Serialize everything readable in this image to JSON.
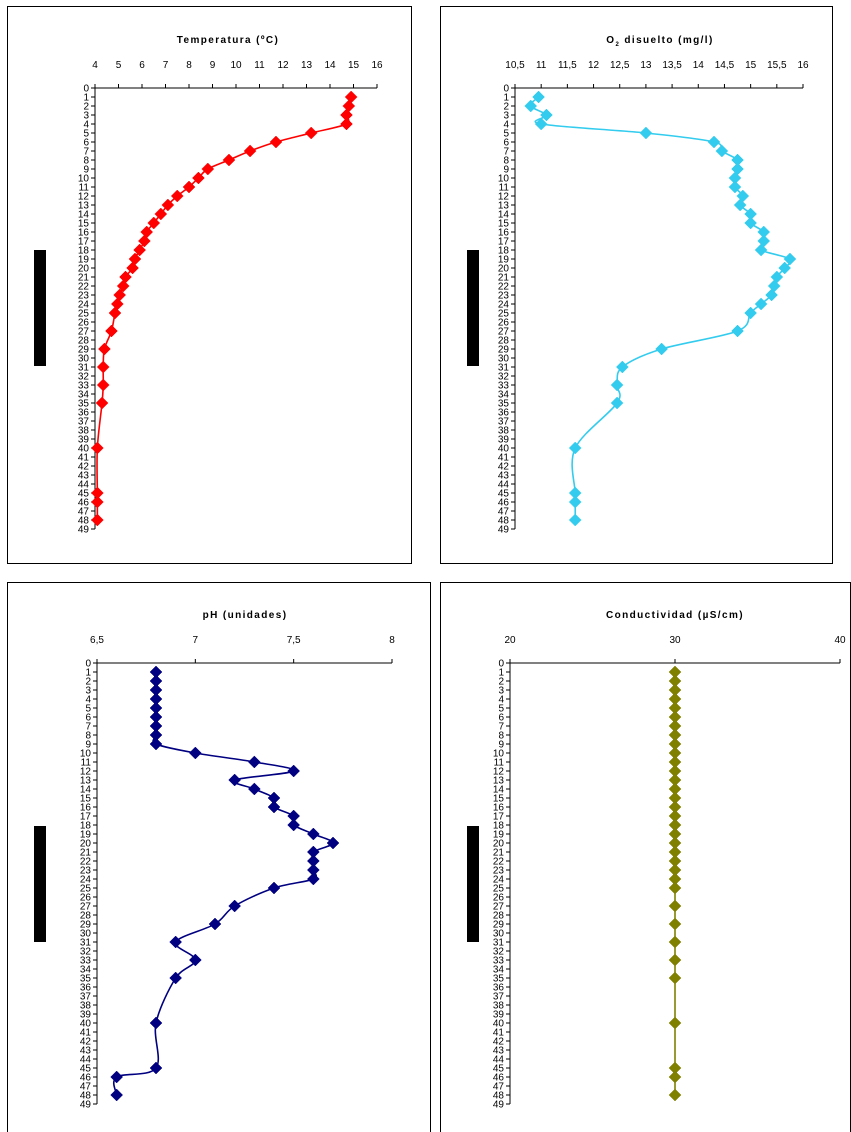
{
  "chart_data": [
    {
      "type": "line",
      "title": "Temperatura (ºC)",
      "x_ticks": [
        "4",
        "5",
        "6",
        "7",
        "8",
        "9",
        "10",
        "11",
        "12",
        "13",
        "14",
        "15",
        "16"
      ],
      "xlim": [
        4,
        16
      ],
      "y_ticks_range": [
        0,
        49
      ],
      "ylim": [
        0,
        49
      ],
      "y_inverted": true,
      "x_axis_position": "top",
      "color": "#ff0000",
      "marker": "diamond",
      "has_black_bar": true,
      "points": [
        {
          "depth": 1,
          "value": 14.9
        },
        {
          "depth": 2,
          "value": 14.8
        },
        {
          "depth": 3,
          "value": 14.7
        },
        {
          "depth": 4,
          "value": 14.7
        },
        {
          "depth": 5,
          "value": 13.2
        },
        {
          "depth": 6,
          "value": 11.7
        },
        {
          "depth": 7,
          "value": 10.6
        },
        {
          "depth": 8,
          "value": 9.7
        },
        {
          "depth": 9,
          "value": 8.8
        },
        {
          "depth": 10,
          "value": 8.4
        },
        {
          "depth": 11,
          "value": 8.0
        },
        {
          "depth": 12,
          "value": 7.5
        },
        {
          "depth": 13,
          "value": 7.1
        },
        {
          "depth": 14,
          "value": 6.8
        },
        {
          "depth": 15,
          "value": 6.5
        },
        {
          "depth": 16,
          "value": 6.2
        },
        {
          "depth": 17,
          "value": 6.1
        },
        {
          "depth": 18,
          "value": 5.9
        },
        {
          "depth": 19,
          "value": 5.7
        },
        {
          "depth": 20,
          "value": 5.6
        },
        {
          "depth": 21,
          "value": 5.3
        },
        {
          "depth": 22,
          "value": 5.2
        },
        {
          "depth": 23,
          "value": 5.05
        },
        {
          "depth": 24,
          "value": 4.95
        },
        {
          "depth": 25,
          "value": 4.85
        },
        {
          "depth": 27,
          "value": 4.7
        },
        {
          "depth": 29,
          "value": 4.4
        },
        {
          "depth": 31,
          "value": 4.35
        },
        {
          "depth": 33,
          "value": 4.35
        },
        {
          "depth": 35,
          "value": 4.3
        },
        {
          "depth": 40,
          "value": 4.1
        },
        {
          "depth": 45,
          "value": 4.1
        },
        {
          "depth": 46,
          "value": 4.1
        },
        {
          "depth": 48,
          "value": 4.1
        }
      ]
    },
    {
      "type": "line",
      "title": "O₂ disuelto (mg/l)",
      "title_main": "O",
      "title_sub": "2",
      "title_rest": " disuelto (mg/l)",
      "x_ticks": [
        "10,5",
        "11",
        "11,5",
        "12",
        "12,5",
        "13",
        "13,5",
        "14",
        "14,5",
        "15",
        "15,5",
        "16"
      ],
      "xlim": [
        10.5,
        16
      ],
      "y_ticks_range": [
        0,
        49
      ],
      "ylim": [
        0,
        49
      ],
      "y_inverted": true,
      "x_axis_position": "top",
      "color": "#33ccee",
      "marker": "diamond",
      "has_black_bar": true,
      "points": [
        {
          "depth": 1,
          "value": 10.95
        },
        {
          "depth": 2,
          "value": 10.8
        },
        {
          "depth": 3,
          "value": 11.1
        },
        {
          "depth": 4,
          "value": 11.0
        },
        {
          "depth": 5,
          "value": 13.0
        },
        {
          "depth": 6,
          "value": 14.3
        },
        {
          "depth": 7,
          "value": 14.45
        },
        {
          "depth": 8,
          "value": 14.75
        },
        {
          "depth": 9,
          "value": 14.75
        },
        {
          "depth": 10,
          "value": 14.7
        },
        {
          "depth": 11,
          "value": 14.7
        },
        {
          "depth": 12,
          "value": 14.85
        },
        {
          "depth": 13,
          "value": 14.8
        },
        {
          "depth": 14,
          "value": 15.0
        },
        {
          "depth": 15,
          "value": 15.0
        },
        {
          "depth": 16,
          "value": 15.25
        },
        {
          "depth": 17,
          "value": 15.25
        },
        {
          "depth": 18,
          "value": 15.2
        },
        {
          "depth": 19,
          "value": 15.75
        },
        {
          "depth": 20,
          "value": 15.65
        },
        {
          "depth": 21,
          "value": 15.5
        },
        {
          "depth": 22,
          "value": 15.45
        },
        {
          "depth": 23,
          "value": 15.4
        },
        {
          "depth": 24,
          "value": 15.2
        },
        {
          "depth": 25,
          "value": 15.0
        },
        {
          "depth": 27,
          "value": 14.75
        },
        {
          "depth": 29,
          "value": 13.3
        },
        {
          "depth": 31,
          "value": 12.55
        },
        {
          "depth": 33,
          "value": 12.45
        },
        {
          "depth": 35,
          "value": 12.45
        },
        {
          "depth": 40,
          "value": 11.65
        },
        {
          "depth": 45,
          "value": 11.65
        },
        {
          "depth": 46,
          "value": 11.65
        },
        {
          "depth": 48,
          "value": 11.65
        }
      ]
    },
    {
      "type": "line",
      "title": "pH (unidades)",
      "x_ticks": [
        "6,5",
        "7",
        "7,5",
        "8"
      ],
      "xlim": [
        6.5,
        8
      ],
      "y_ticks_range": [
        0,
        49
      ],
      "ylim": [
        0,
        49
      ],
      "y_inverted": true,
      "x_axis_position": "top",
      "color": "#000080",
      "marker": "diamond",
      "has_black_bar": true,
      "points": [
        {
          "depth": 1,
          "value": 6.8
        },
        {
          "depth": 2,
          "value": 6.8
        },
        {
          "depth": 3,
          "value": 6.8
        },
        {
          "depth": 4,
          "value": 6.8
        },
        {
          "depth": 5,
          "value": 6.8
        },
        {
          "depth": 6,
          "value": 6.8
        },
        {
          "depth": 7,
          "value": 6.8
        },
        {
          "depth": 8,
          "value": 6.8
        },
        {
          "depth": 9,
          "value": 6.8
        },
        {
          "depth": 10,
          "value": 7.0
        },
        {
          "depth": 11,
          "value": 7.3
        },
        {
          "depth": 12,
          "value": 7.5
        },
        {
          "depth": 13,
          "value": 7.2
        },
        {
          "depth": 14,
          "value": 7.3
        },
        {
          "depth": 15,
          "value": 7.4
        },
        {
          "depth": 16,
          "value": 7.4
        },
        {
          "depth": 17,
          "value": 7.5
        },
        {
          "depth": 18,
          "value": 7.5
        },
        {
          "depth": 19,
          "value": 7.6
        },
        {
          "depth": 20,
          "value": 7.7
        },
        {
          "depth": 21,
          "value": 7.6
        },
        {
          "depth": 22,
          "value": 7.6
        },
        {
          "depth": 23,
          "value": 7.6
        },
        {
          "depth": 24,
          "value": 7.6
        },
        {
          "depth": 25,
          "value": 7.4
        },
        {
          "depth": 27,
          "value": 7.2
        },
        {
          "depth": 29,
          "value": 7.1
        },
        {
          "depth": 31,
          "value": 6.9
        },
        {
          "depth": 33,
          "value": 7.0
        },
        {
          "depth": 35,
          "value": 6.9
        },
        {
          "depth": 40,
          "value": 6.8
        },
        {
          "depth": 45,
          "value": 6.8
        },
        {
          "depth": 46,
          "value": 6.6
        },
        {
          "depth": 48,
          "value": 6.6
        }
      ]
    },
    {
      "type": "line",
      "title": "Conductividad (µS/cm)",
      "x_ticks": [
        "20",
        "30",
        "40"
      ],
      "xlim": [
        20,
        40
      ],
      "y_ticks_range": [
        0,
        49
      ],
      "ylim": [
        0,
        49
      ],
      "y_inverted": true,
      "x_axis_position": "top",
      "color": "#808000",
      "marker": "diamond",
      "has_black_bar": true,
      "points": [
        {
          "depth": 1,
          "value": 30
        },
        {
          "depth": 2,
          "value": 30
        },
        {
          "depth": 3,
          "value": 30
        },
        {
          "depth": 4,
          "value": 30
        },
        {
          "depth": 5,
          "value": 30
        },
        {
          "depth": 6,
          "value": 30
        },
        {
          "depth": 7,
          "value": 30
        },
        {
          "depth": 8,
          "value": 30
        },
        {
          "depth": 9,
          "value": 30
        },
        {
          "depth": 10,
          "value": 30
        },
        {
          "depth": 11,
          "value": 30
        },
        {
          "depth": 12,
          "value": 30
        },
        {
          "depth": 13,
          "value": 30
        },
        {
          "depth": 14,
          "value": 30
        },
        {
          "depth": 15,
          "value": 30
        },
        {
          "depth": 16,
          "value": 30
        },
        {
          "depth": 17,
          "value": 30
        },
        {
          "depth": 18,
          "value": 30
        },
        {
          "depth": 19,
          "value": 30
        },
        {
          "depth": 20,
          "value": 30
        },
        {
          "depth": 21,
          "value": 30
        },
        {
          "depth": 22,
          "value": 30
        },
        {
          "depth": 23,
          "value": 30
        },
        {
          "depth": 24,
          "value": 30
        },
        {
          "depth": 25,
          "value": 30
        },
        {
          "depth": 27,
          "value": 30
        },
        {
          "depth": 29,
          "value": 30
        },
        {
          "depth": 31,
          "value": 30
        },
        {
          "depth": 33,
          "value": 30
        },
        {
          "depth": 35,
          "value": 30
        },
        {
          "depth": 40,
          "value": 30
        },
        {
          "depth": 45,
          "value": 30
        },
        {
          "depth": 46,
          "value": 30
        },
        {
          "depth": 48,
          "value": 30
        }
      ]
    }
  ]
}
